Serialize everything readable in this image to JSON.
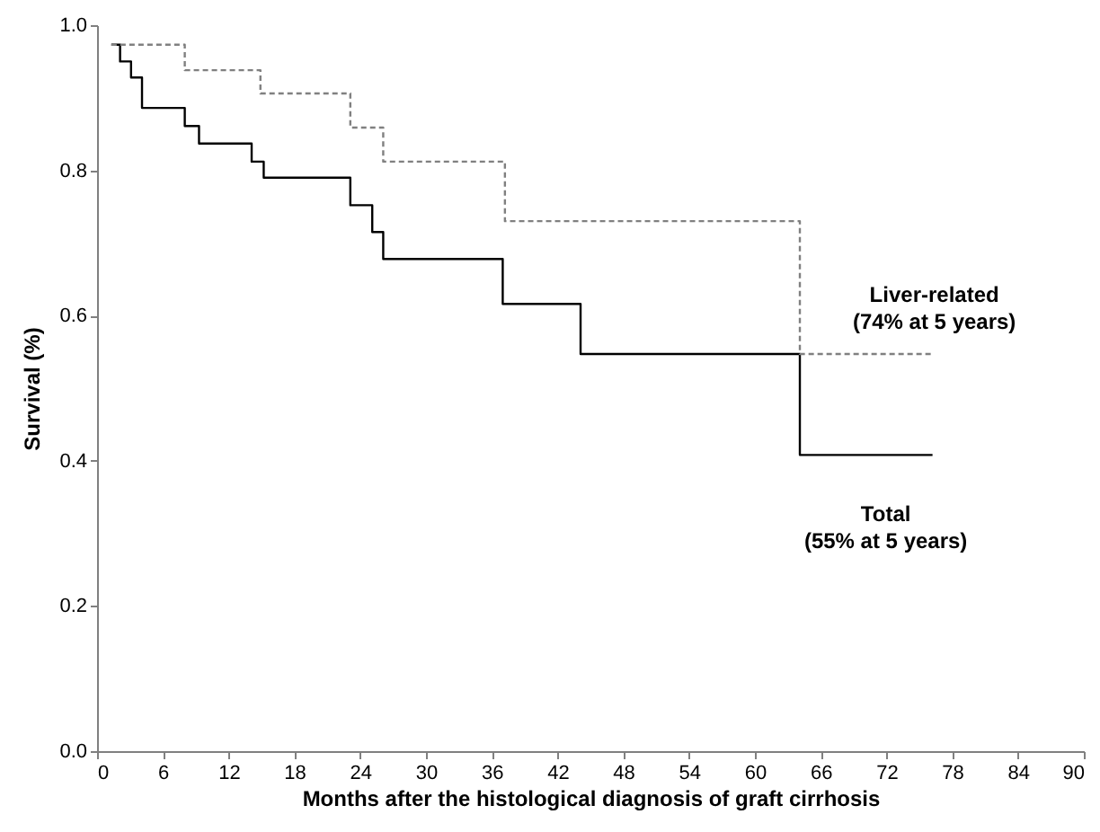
{
  "chart_data": {
    "type": "step",
    "xlabel": "Months after the histological diagnosis of graft cirrhosis",
    "ylabel": "Survival (%)",
    "xlim": [
      0,
      90
    ],
    "xticks": [
      0,
      6,
      12,
      18,
      24,
      30,
      36,
      42,
      48,
      54,
      60,
      66,
      72,
      78,
      84,
      90
    ],
    "ylim": [
      0,
      1
    ],
    "yticks": [
      {
        "value": 0,
        "label": "0.0"
      },
      {
        "value": 0.2,
        "label": "0.2"
      },
      {
        "value": 0.4,
        "label": "0.4"
      },
      {
        "value": 0.6,
        "label": "0.6"
      },
      {
        "value": 0.8,
        "label": "0.8"
      },
      {
        "value": 1,
        "label": "1.0"
      }
    ],
    "grid": false,
    "marker": "none",
    "series": [
      {
        "name": "Total\n(55% at 5 years)",
        "color": "#000000",
        "line_style": "solid",
        "x": [
          1.3,
          2.1,
          3.1,
          4.1,
          8.0,
          9.3,
          14.1,
          15.2,
          23.1,
          25.1,
          26.1,
          37.0,
          44.1,
          64.1,
          76.2
        ],
        "values": [
          0.973,
          0.95,
          0.928,
          0.886,
          0.861,
          0.837,
          0.812,
          0.79,
          0.752,
          0.715,
          0.678,
          0.616,
          0.547,
          0.408,
          0.408
        ]
      },
      {
        "name": "Liver-related\n(74% at 5 years)",
        "color": "#808080",
        "line_style": "dashed",
        "x": [
          1.3,
          8.0,
          14.9,
          23.1,
          26.1,
          37.2,
          64.1,
          76.2
        ],
        "values": [
          0.973,
          0.938,
          0.906,
          0.859,
          0.812,
          0.73,
          0.547,
          0.547
        ]
      }
    ]
  }
}
